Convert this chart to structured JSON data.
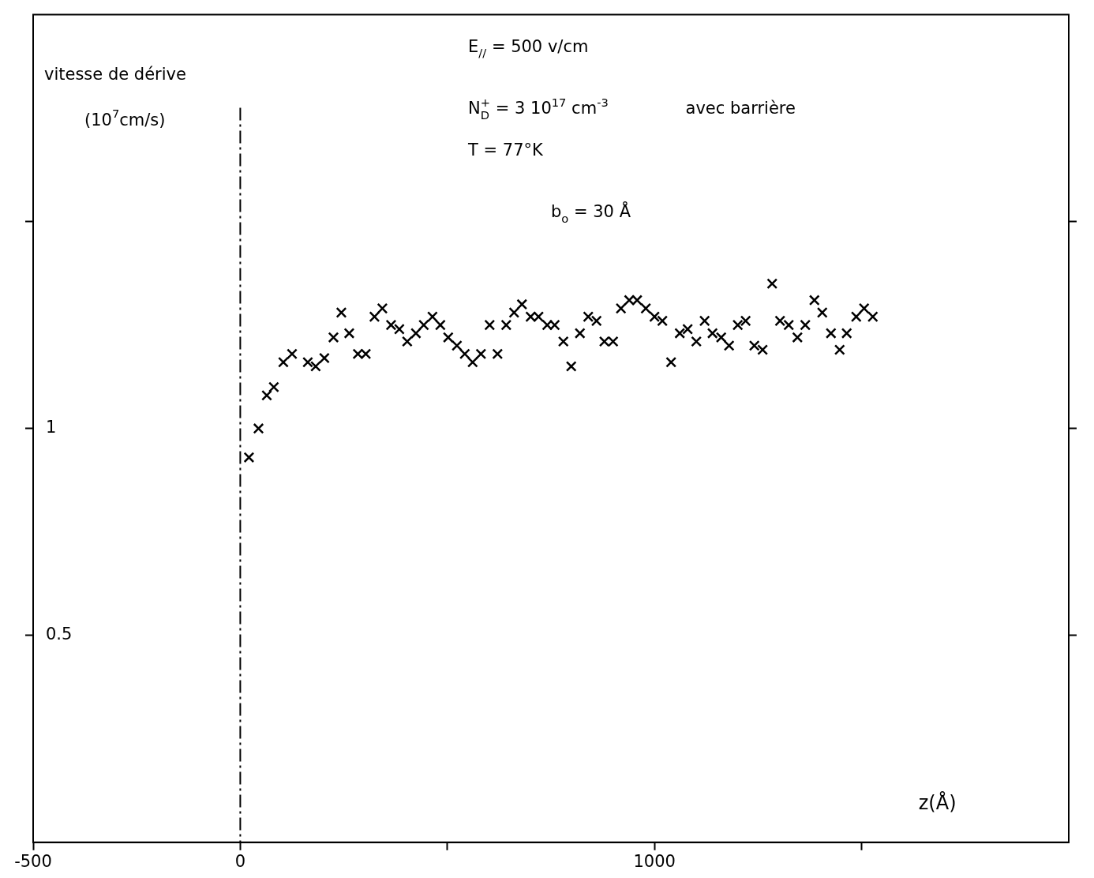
{
  "chart_data": {
    "type": "scatter",
    "xlabel": "z(Å)",
    "ylabel": "vitesse de dérive (10$^{7}$cm/s)",
    "annotations": [
      "E$_{//}$ = 500 v/cm",
      "N$_{D}$$^{+}$ = 3 10$^{17}$ cm$^{-3}$",
      "T = 77°K",
      "b$_{o}$ = 30 Å",
      "avec barrière"
    ],
    "series": [
      {
        "color": "#000000",
        "x": [
          21,
          44,
          64,
          81,
          104,
          125,
          163,
          182,
          203,
          225,
          244,
          263,
          284,
          303,
          324,
          343,
          364,
          384,
          403,
          424,
          443,
          464,
          483,
          502,
          523,
          542,
          561,
          581,
          602,
          621,
          642,
          661,
          680,
          701,
          720,
          741,
          759,
          780,
          799,
          820,
          840,
          860,
          879,
          900,
          919,
          939,
          958,
          979,
          1000,
          1019,
          1040,
          1061,
          1080,
          1101,
          1121,
          1140,
          1161,
          1180,
          1201,
          1220,
          1241,
          1261,
          1284,
          1303,
          1324,
          1345,
          1364,
          1386,
          1405,
          1426,
          1447,
          1464,
          1487,
          1506,
          1527
        ],
        "values": [
          0.93,
          1.0,
          1.08,
          1.1,
          1.16,
          1.18,
          1.16,
          1.15,
          1.17,
          1.22,
          1.28,
          1.23,
          1.18,
          1.18,
          1.27,
          1.29,
          1.25,
          1.24,
          1.21,
          1.23,
          1.25,
          1.27,
          1.25,
          1.22,
          1.2,
          1.18,
          1.16,
          1.18,
          1.25,
          1.18,
          1.25,
          1.28,
          1.3,
          1.27,
          1.27,
          1.25,
          1.25,
          1.21,
          1.15,
          1.23,
          1.27,
          1.26,
          1.21,
          1.21,
          1.29,
          1.31,
          1.31,
          1.29,
          1.27,
          1.26,
          1.16,
          1.23,
          1.24,
          1.21,
          1.26,
          1.23,
          1.22,
          1.2,
          1.25,
          1.26,
          1.2,
          1.19,
          1.35,
          1.26,
          1.25,
          1.22,
          1.25,
          1.31,
          1.28,
          1.23,
          1.19,
          1.23,
          1.27,
          1.29,
          1.27
        ]
      }
    ],
    "xlim": [
      -500,
      2000
    ],
    "xticks": [
      -500,
      0,
      {
        "value": 500,
        "label": null
      },
      1000,
      {
        "value": 1500,
        "label": null
      }
    ],
    "ylim": [
      0,
      2
    ],
    "yticks": [
      {
        "value": 0.5,
        "label": "0.5"
      },
      1,
      {
        "value": 1.5,
        "label": null
      }
    ],
    "ref_lines": [
      {
        "axis": "x",
        "value": 0,
        "color": "#000000",
        "line_style": "dashed"
      }
    ],
    "marker": "cross",
    "grid": false,
    "legend": false
  }
}
